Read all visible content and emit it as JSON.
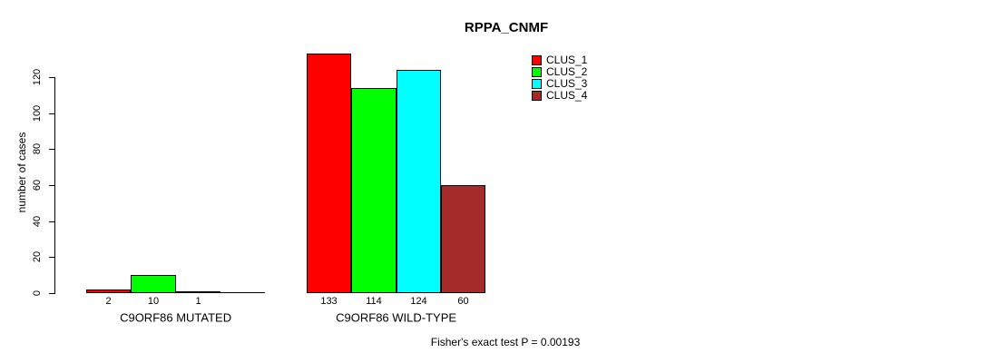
{
  "chart_data": {
    "type": "bar",
    "title": "RPPA_CNMF",
    "ylabel": "number of cases",
    "xlabel": "",
    "ylim": [
      0,
      135
    ],
    "yticks": [
      0,
      20,
      40,
      60,
      80,
      100,
      120
    ],
    "grid": false,
    "legend_position": "top-right",
    "categories": [
      "C9ORF86 MUTATED",
      "C9ORF86 WILD-TYPE"
    ],
    "series": [
      {
        "name": "CLUS_1",
        "color": "#ff0000",
        "values": [
          2,
          133
        ]
      },
      {
        "name": "CLUS_2",
        "color": "#00ff00",
        "values": [
          10,
          114
        ]
      },
      {
        "name": "CLUS_3",
        "color": "#00ffff",
        "values": [
          1,
          124
        ]
      },
      {
        "name": "CLUS_4",
        "color": "#a52a2a",
        "values": [
          0,
          60
        ]
      }
    ],
    "bar_value_labels_shown": "values greater than zero",
    "annotation": "Fisher's exact test P = 0.00193"
  }
}
